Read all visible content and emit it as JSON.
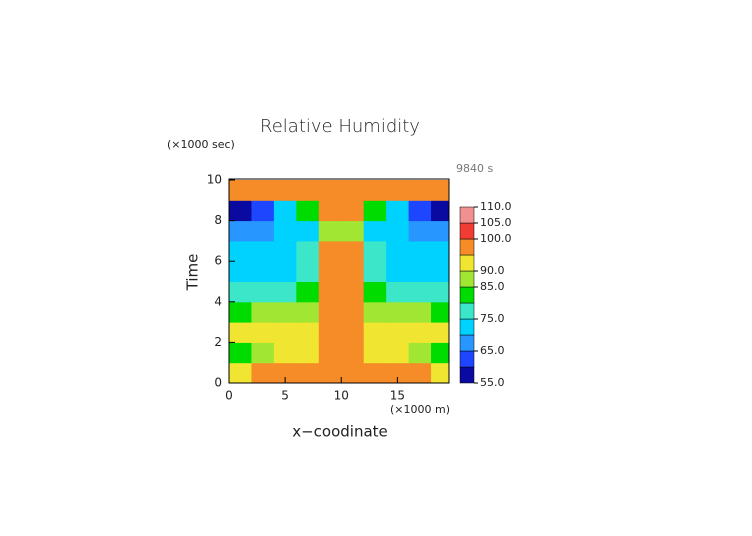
{
  "chart_data": {
    "type": "contour",
    "title": "Relative Humidity",
    "y_unit": "(×1000 sec)",
    "x_unit": "(×1000 m)",
    "ylabel": "Time",
    "xlabel": "x−coodinate",
    "annotation": "9840 s",
    "xlim": [
      0,
      19.6
    ],
    "ylim": [
      0,
      10
    ],
    "xticks": [
      0,
      5,
      10,
      15
    ],
    "yticks": [
      0,
      2,
      4,
      6,
      8,
      10
    ],
    "x": [
      1,
      3,
      5,
      7,
      9,
      11,
      13,
      15,
      17,
      19
    ],
    "y": [
      0.5,
      1.5,
      2.5,
      3.5,
      4.5,
      5.5,
      6.5,
      7.5,
      8.5,
      9.5
    ],
    "z": [
      [
        93,
        97,
        97,
        97,
        96,
        96,
        97,
        97,
        97,
        93
      ],
      [
        83,
        86,
        90,
        92,
        97,
        97,
        92,
        90,
        86,
        83
      ],
      [
        90,
        91,
        91,
        92,
        97,
        97,
        92,
        91,
        91,
        90
      ],
      [
        84,
        85,
        85,
        88,
        97,
        97,
        88,
        85,
        85,
        84
      ],
      [
        77,
        78,
        78,
        80,
        96,
        96,
        80,
        78,
        78,
        77
      ],
      [
        73,
        72,
        74,
        76,
        96,
        96,
        76,
        74,
        72,
        73
      ],
      [
        72,
        72,
        73,
        75,
        97,
        97,
        75,
        73,
        72,
        72
      ],
      [
        67,
        68,
        70,
        73,
        85,
        85,
        73,
        70,
        68,
        67
      ],
      [
        58,
        64,
        70,
        80,
        97,
        97,
        80,
        70,
        64,
        58
      ],
      [
        97,
        97,
        97,
        97,
        97,
        97,
        97,
        97,
        97,
        97
      ]
    ],
    "levels": [
      55,
      60,
      65,
      70,
      75,
      80,
      85,
      90,
      95,
      100,
      105,
      110
    ],
    "colors": [
      "#0a0aa0",
      "#1e46ff",
      "#2896ff",
      "#00d2ff",
      "#3ce6c8",
      "#00dc00",
      "#a0e632",
      "#f0e632",
      "#f58c28",
      "#f03c32",
      "#f09090"
    ],
    "level_ticks": [
      {
        "value": 110,
        "label": "110.0"
      },
      {
        "value": 105,
        "label": "105.0"
      },
      {
        "value": 100,
        "label": "100.0"
      },
      {
        "value": 90,
        "label": "90.0"
      },
      {
        "value": 85,
        "label": "85.0"
      },
      {
        "value": 75,
        "label": "75.0"
      },
      {
        "value": 65,
        "label": "65.0"
      },
      {
        "value": 55,
        "label": "55.0"
      }
    ]
  }
}
